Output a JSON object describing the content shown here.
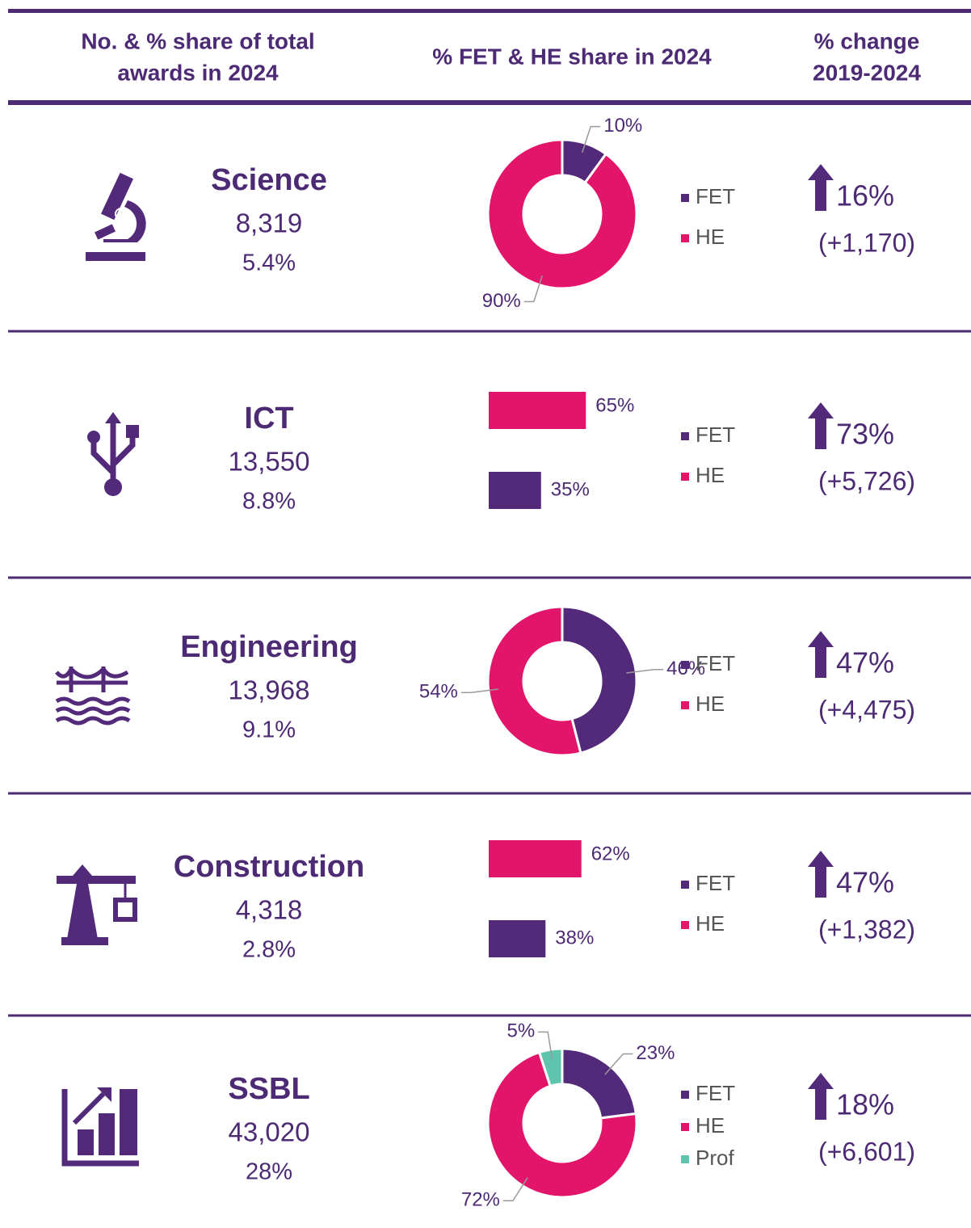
{
  "header": [
    [
      "No. & % share of total",
      "awards in 2024"
    ],
    [
      "% FET & HE share in 2024"
    ],
    [
      "% change",
      "2019-2024"
    ]
  ],
  "rows": [
    {
      "name": "Science",
      "count": "8,319",
      "share": "5.4%",
      "change": "16%",
      "change_abs": "(+1,170)"
    },
    {
      "name": "ICT",
      "count": "13,550",
      "share": "8.8%",
      "change": "73%",
      "change_abs": "(+5,726)"
    },
    {
      "name": "Engineering",
      "count": "13,968",
      "share": "9.1%",
      "change": "47%",
      "change_abs": "(+4,475)"
    },
    {
      "name": "Construction",
      "count": "4,318",
      "share": "2.8%",
      "change": "47%",
      "change_abs": "(+1,382)"
    },
    {
      "name": "SSBL",
      "count": "43,020",
      "share": "28%",
      "change": "18%",
      "change_abs": "(+6,601)"
    }
  ],
  "chart_data": [
    {
      "type": "donut",
      "categories": [
        "FET",
        "HE"
      ],
      "values": [
        10,
        90
      ],
      "value_labels": [
        "10%",
        "90%"
      ],
      "colors": [
        "#532a7a",
        "#e3156b"
      ]
    },
    {
      "type": "bar",
      "categories": [
        "FET",
        "HE"
      ],
      "values": [
        35,
        65
      ],
      "value_labels": [
        "35%",
        "65%"
      ],
      "colors": [
        "#532a7a",
        "#e3156b"
      ]
    },
    {
      "type": "donut",
      "categories": [
        "FET",
        "HE"
      ],
      "values": [
        46,
        54
      ],
      "value_labels": [
        "46%",
        "54%"
      ],
      "colors": [
        "#532a7a",
        "#e3156b"
      ]
    },
    {
      "type": "bar",
      "categories": [
        "FET",
        "HE"
      ],
      "values": [
        38,
        62
      ],
      "value_labels": [
        "38%",
        "62%"
      ],
      "colors": [
        "#532a7a",
        "#e3156b"
      ]
    },
    {
      "type": "donut",
      "categories": [
        "FET",
        "HE",
        "Prof"
      ],
      "values": [
        23,
        72,
        5
      ],
      "value_labels": [
        "23%",
        "72%",
        "5%"
      ],
      "colors": [
        "#532a7a",
        "#e3156b",
        "#5fc4ae"
      ]
    }
  ]
}
